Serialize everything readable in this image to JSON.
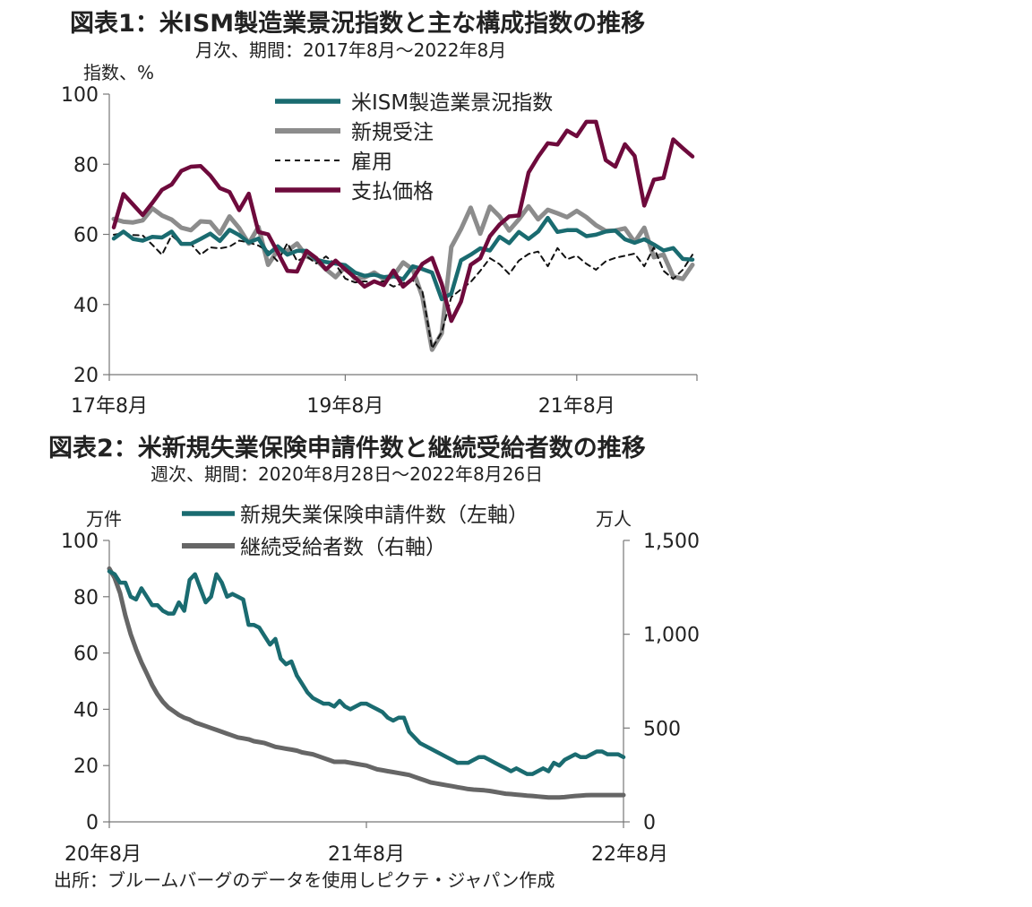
{
  "source": "出所：ブルームバーグのデータを使用しピクテ・ジャパン作成",
  "chart_data": [
    {
      "type": "line",
      "title": "図表1：米ISM製造業景況指数と主な構成指数の推移",
      "subtitle": "月次、期間：2017年8月～2022年8月",
      "ylabel": "指数、%",
      "ylim": [
        20,
        100
      ],
      "yticks": [
        "100",
        "80",
        "60",
        "40",
        "20"
      ],
      "x_tick_labels": [
        "17年8月",
        "19年8月",
        "21年8月"
      ],
      "x_start": "2017-08",
      "x_end": "2022-08",
      "grid": false,
      "legend_position": "top-right",
      "colors": {
        "ism": "#1a6b70",
        "new_orders": "#8c8c8c",
        "employment": "#111111",
        "prices": "#6e0a3c"
      },
      "series": [
        {
          "name": "米ISM製造業景況指数",
          "values": [
            58.8,
            60.8,
            58.7,
            58.2,
            59.3,
            59.1,
            60.8,
            57.3,
            57.3,
            58.7,
            60.2,
            58.1,
            61.3,
            59.8,
            57.7,
            58.8,
            54.3,
            56.6,
            54.2,
            55.3,
            55.3,
            52.8,
            52.1,
            51.7,
            51.2,
            49.1,
            48.2,
            48.5,
            47.8,
            48.1,
            47.2,
            50.9,
            50.1,
            49.1,
            41.5,
            43.1,
            52.6,
            54.2,
            56.0,
            55.4,
            59.3,
            57.5,
            60.7,
            58.7,
            60.8,
            64.7,
            60.7,
            61.2,
            61.2,
            59.5,
            59.9,
            60.8,
            61.1,
            58.6,
            57.6,
            58.6,
            57.1,
            55.4,
            56.1,
            53.0,
            52.8
          ]
        },
        {
          "name": "新規受注",
          "values": [
            64.4,
            63.6,
            63.4,
            64.0,
            67.4,
            65.4,
            64.2,
            61.9,
            61.2,
            63.7,
            63.5,
            60.2,
            65.1,
            61.8,
            57.4,
            62.1,
            51.3,
            55.5,
            55.3,
            57.4,
            53.7,
            52.7,
            50.0,
            47.8,
            50.8,
            47.4,
            47.7,
            49.1,
            47.2,
            48.1,
            52.0,
            50.0,
            42.2,
            27.1,
            31.8,
            56.4,
            61.5,
            67.6,
            60.2,
            67.9,
            65.1,
            61.1,
            64.3,
            68.0,
            64.3,
            67.0,
            66.0,
            64.9,
            66.7,
            64.9,
            62.6,
            61.0,
            61.1,
            61.7,
            57.8,
            61.9,
            53.5,
            54.2,
            48.0,
            47.3,
            51.3
          ]
        },
        {
          "name": "雇用",
          "values": [
            59.9,
            60.3,
            59.8,
            59.7,
            57.0,
            54.2,
            59.7,
            57.3,
            57.3,
            54.2,
            56.3,
            56.0,
            56.5,
            58.2,
            57.7,
            56.8,
            55.2,
            52.3,
            57.5,
            52.4,
            53.7,
            51.7,
            53.7,
            51.4,
            47.4,
            46.3,
            46.6,
            46.2,
            46.6,
            45.1,
            46.1,
            46.9,
            43.8,
            27.5,
            32.1,
            42.1,
            44.3,
            46.4,
            49.6,
            53.2,
            51.5,
            48.7,
            52.5,
            54.4,
            55.1,
            50.9,
            56.1,
            52.9,
            53.9,
            51.6,
            49.9,
            52.3,
            53.3,
            53.9,
            54.5,
            50.9,
            56.3,
            49.6,
            47.3,
            49.9,
            54.2
          ]
        },
        {
          "name": "支払価格",
          "values": [
            62.0,
            71.5,
            68.5,
            65.5,
            69.0,
            72.7,
            74.2,
            78.1,
            79.3,
            79.5,
            76.8,
            73.2,
            72.1,
            66.9,
            71.6,
            60.7,
            60.0,
            54.9,
            49.6,
            49.4,
            55.3,
            53.2,
            50.0,
            52.5,
            50.0,
            47.7,
            45.1,
            46.6,
            45.5,
            49.7,
            45.1,
            47.4,
            51.6,
            53.3,
            45.9,
            35.3,
            40.8,
            51.3,
            53.2,
            59.5,
            62.8,
            65.1,
            65.4,
            77.6,
            82.1,
            86.0,
            85.6,
            89.6,
            88.0,
            92.1,
            92.1,
            81.2,
            79.3,
            85.7,
            82.4,
            68.2,
            75.6,
            76.1,
            87.1,
            84.6,
            82.2
          ]
        }
      ]
    },
    {
      "type": "line",
      "title": "図表2：米新規失業保険申請件数と継続受給者数の推移",
      "subtitle": "週次、期間：2020年8月28日～2022年8月26日",
      "ylabel_left": "万件",
      "ylabel_right": "万人",
      "ylim_left": [
        0,
        100
      ],
      "ylim_right": [
        0,
        1500
      ],
      "yticks_left": [
        "100",
        "80",
        "60",
        "40",
        "20",
        "0"
      ],
      "yticks_right": [
        "1,500",
        "1,000",
        "500",
        "0"
      ],
      "x_tick_labels": [
        "20年8月",
        "21年8月",
        "22年8月"
      ],
      "x_start": "2020-08-28",
      "x_end": "2022-08-26",
      "grid": false,
      "legend_position": "top",
      "colors": {
        "claims": "#1a6b70",
        "continuing": "#666666"
      },
      "series": [
        {
          "name": "新規失業保険申請件数（左軸）",
          "axis": "left",
          "values": [
            89,
            88,
            85,
            85,
            80,
            79,
            83,
            80,
            77,
            77,
            75,
            74,
            74,
            78,
            75,
            86,
            88,
            83,
            78,
            80,
            88,
            85,
            80,
            81,
            80,
            79,
            70,
            70,
            69,
            66,
            63,
            65,
            58,
            56,
            57,
            52,
            49,
            46,
            44,
            43,
            42,
            42,
            41,
            43,
            41,
            40,
            41,
            42,
            42,
            41,
            40,
            39,
            37,
            36,
            37,
            37,
            32,
            30,
            28,
            27,
            26,
            25,
            24,
            23,
            22,
            21,
            21,
            21,
            22,
            23,
            23,
            22,
            21,
            20,
            19,
            18,
            19,
            18,
            17,
            17,
            18,
            19,
            18,
            21,
            20,
            22,
            23,
            24,
            23,
            23,
            24,
            25,
            25,
            24,
            24,
            24,
            23
          ]
        },
        {
          "name": "継続受給者数（右軸）",
          "axis": "right",
          "values": [
            1350,
            1300,
            1220,
            1100,
            1000,
            920,
            850,
            790,
            730,
            680,
            640,
            610,
            590,
            570,
            555,
            545,
            530,
            520,
            510,
            500,
            490,
            480,
            470,
            460,
            450,
            445,
            440,
            430,
            425,
            420,
            410,
            400,
            395,
            390,
            385,
            380,
            370,
            365,
            360,
            350,
            340,
            330,
            320,
            320,
            320,
            315,
            310,
            305,
            300,
            290,
            280,
            275,
            270,
            265,
            260,
            255,
            250,
            240,
            230,
            220,
            210,
            205,
            200,
            195,
            190,
            185,
            180,
            175,
            172,
            170,
            168,
            165,
            160,
            155,
            150,
            148,
            145,
            143,
            140,
            138,
            135,
            133,
            130,
            130,
            130,
            132,
            135,
            138,
            140,
            142,
            143,
            143,
            143,
            143,
            143,
            143,
            143
          ]
        }
      ]
    }
  ]
}
